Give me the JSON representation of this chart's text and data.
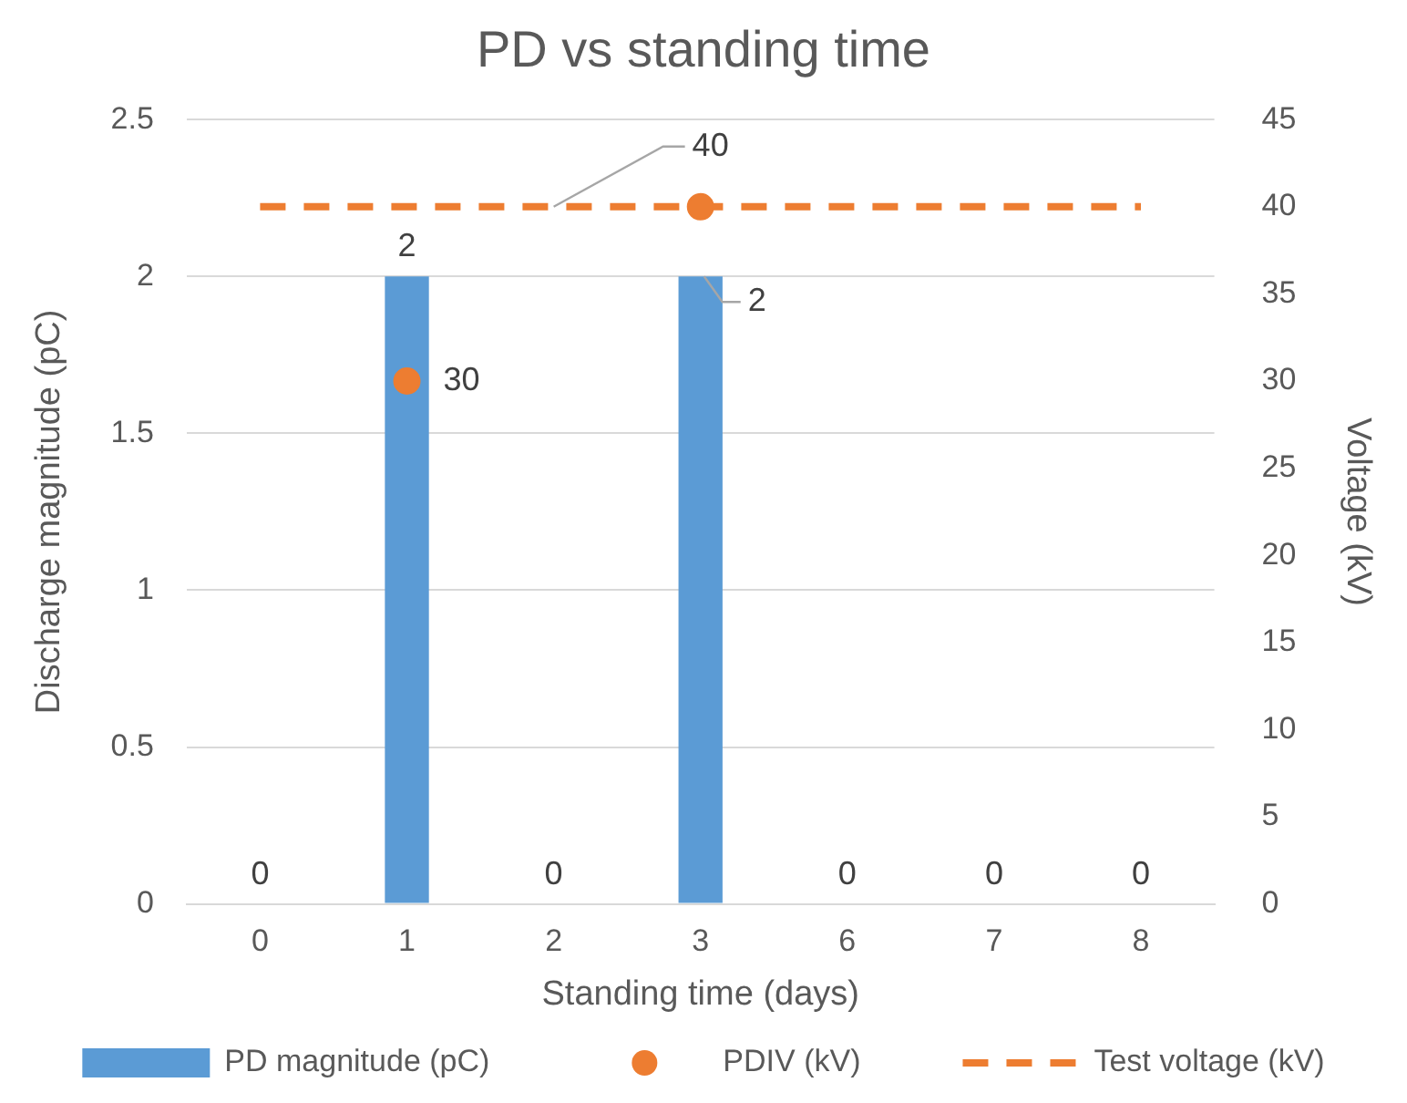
{
  "chart_data": {
    "type": "bar",
    "title": "PD vs standing time",
    "xlabel": "Standing time (days)",
    "ylabel": "Discharge magnitude (pC)",
    "y2label": "Voltage (kV)",
    "categories": [
      "0",
      "1",
      "2",
      "3",
      "6",
      "7",
      "8"
    ],
    "series": [
      {
        "name": "PD magnitude (pC)",
        "color": "#5b9bd5",
        "values": [
          0,
          2,
          0,
          2,
          0,
          0,
          0
        ],
        "value_labels": [
          "0",
          "2",
          "0",
          "2",
          "0",
          "0",
          "0"
        ]
      },
      {
        "name": "PDIV (kV)",
        "type": "scatter",
        "axis": "y2",
        "color": "#ed7d31",
        "marker": "circle",
        "values": [
          null,
          30,
          null,
          40,
          null,
          null,
          null
        ],
        "value_labels": [
          null,
          "30",
          null,
          null,
          null,
          null,
          null
        ]
      },
      {
        "name": "Test voltage (kV)",
        "type": "line",
        "axis": "y2",
        "color": "#ed7d31",
        "marker": "none",
        "line_style": "dashed",
        "values": [
          40,
          40,
          40,
          40,
          40,
          40,
          40
        ],
        "value_labels": [
          null,
          null,
          "40",
          null,
          null,
          null,
          null
        ]
      }
    ],
    "ylim": [
      0,
      2.5
    ],
    "yticks": [
      0,
      0.5,
      1,
      1.5,
      2,
      2.5
    ],
    "y2lim": [
      0,
      45
    ],
    "y2ticks": [
      0,
      5,
      10,
      15,
      20,
      25,
      30,
      35,
      40,
      45
    ],
    "grid": "y",
    "legend": "bottom"
  }
}
